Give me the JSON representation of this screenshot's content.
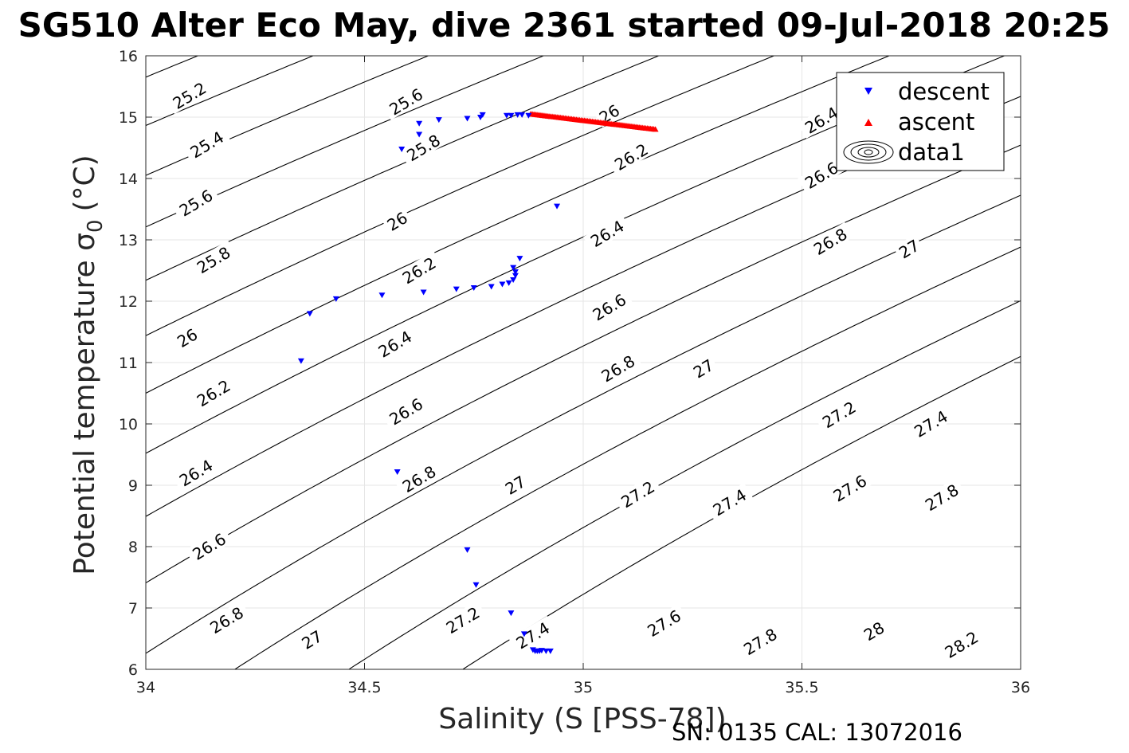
{
  "chart_data": {
    "type": "scatter",
    "title": "SG510 Alter Eco May, dive 2361 started 09-Jul-2018 20:25",
    "xlabel": "Salinity (S [PSS-78])",
    "ylabel": "Potential temperature σ₀ (°C)",
    "ylabel_main": "Potential temperature σ",
    "ylabel_sub": "0",
    "ylabel_unit": "(°C)",
    "xlim": [
      34,
      36
    ],
    "ylim": [
      6,
      16
    ],
    "xticks": [
      34,
      34.5,
      35,
      35.5,
      36
    ],
    "xtick_labels": [
      "34",
      "34.5",
      "35",
      "35.5",
      "36"
    ],
    "yticks": [
      6,
      7,
      8,
      9,
      10,
      11,
      12,
      13,
      14,
      15,
      16
    ],
    "ytick_labels": [
      "6",
      "7",
      "8",
      "9",
      "10",
      "11",
      "12",
      "13",
      "14",
      "15",
      "16"
    ],
    "grid": true,
    "legend_position": "top-right",
    "series": [
      {
        "name": "descent",
        "marker": "triangle-down",
        "color": "#0000ff",
        "points": [
          [
            34.355,
            11.03
          ],
          [
            34.375,
            11.8
          ],
          [
            34.435,
            12.04
          ],
          [
            34.54,
            12.1
          ],
          [
            34.575,
            9.22
          ],
          [
            34.585,
            14.48
          ],
          [
            34.625,
            14.9
          ],
          [
            34.625,
            14.72
          ],
          [
            34.635,
            12.15
          ],
          [
            34.67,
            14.96
          ],
          [
            34.71,
            12.2
          ],
          [
            34.735,
            14.98
          ],
          [
            34.75,
            12.22
          ],
          [
            34.765,
            15.0
          ],
          [
            34.77,
            15.04
          ],
          [
            34.79,
            12.24
          ],
          [
            34.815,
            12.28
          ],
          [
            34.825,
            15.03
          ],
          [
            34.83,
            12.3
          ],
          [
            34.835,
            15.03
          ],
          [
            34.84,
            12.35
          ],
          [
            34.84,
            12.55
          ],
          [
            34.845,
            12.42
          ],
          [
            34.845,
            12.48
          ],
          [
            34.85,
            15.04
          ],
          [
            34.855,
            12.7
          ],
          [
            34.86,
            15.04
          ],
          [
            34.875,
            15.03
          ],
          [
            34.94,
            13.55
          ],
          [
            34.735,
            7.95
          ],
          [
            34.755,
            7.38
          ],
          [
            34.835,
            6.92
          ],
          [
            34.865,
            6.58
          ],
          [
            34.885,
            6.32
          ],
          [
            34.89,
            6.3
          ],
          [
            34.895,
            6.3
          ],
          [
            34.9,
            6.3
          ],
          [
            34.905,
            6.31
          ],
          [
            34.915,
            6.3
          ],
          [
            34.925,
            6.3
          ]
        ]
      },
      {
        "name": "ascent",
        "marker": "triangle-up",
        "color": "#ff0000",
        "line": {
          "x_start": 34.88,
          "x_end": 35.165,
          "y_start": 15.05,
          "y_end": 14.8,
          "count": 80
        }
      },
      {
        "name": "data1",
        "marker": "contour",
        "color": "#000000"
      }
    ],
    "contour_levels": [
      25.2,
      25.4,
      25.6,
      25.8,
      26.0,
      26.2,
      26.4,
      26.6,
      26.8,
      27.0,
      27.2,
      27.4,
      27.6,
      27.8,
      28.0,
      28.2
    ],
    "contour_labels": [
      {
        "text": "25.2",
        "x": 34.1,
        "y": 15.35
      },
      {
        "text": "25.4",
        "x": 34.14,
        "y": 14.55
      },
      {
        "text": "25.6",
        "x": 34.115,
        "y": 13.6
      },
      {
        "text": "25.8",
        "x": 34.155,
        "y": 12.67
      },
      {
        "text": "26",
        "x": 34.095,
        "y": 11.4
      },
      {
        "text": "26.2",
        "x": 34.155,
        "y": 10.5
      },
      {
        "text": "26.4",
        "x": 34.115,
        "y": 9.2
      },
      {
        "text": "26.6",
        "x": 34.145,
        "y": 8.0
      },
      {
        "text": "26.8",
        "x": 34.185,
        "y": 6.8
      },
      {
        "text": "25.6",
        "x": 34.595,
        "y": 15.25
      },
      {
        "text": "25.8",
        "x": 34.635,
        "y": 14.5
      },
      {
        "text": "26",
        "x": 34.575,
        "y": 13.3
      },
      {
        "text": "26.2",
        "x": 34.625,
        "y": 12.5
      },
      {
        "text": "26.4",
        "x": 34.57,
        "y": 11.3
      },
      {
        "text": "26.6",
        "x": 34.595,
        "y": 10.2
      },
      {
        "text": "26.8",
        "x": 34.625,
        "y": 9.1
      },
      {
        "text": "27",
        "x": 34.38,
        "y": 6.48
      },
      {
        "text": "26",
        "x": 35.06,
        "y": 15.05
      },
      {
        "text": "26.2",
        "x": 35.11,
        "y": 14.35
      },
      {
        "text": "26.4",
        "x": 35.055,
        "y": 13.1
      },
      {
        "text": "26.6",
        "x": 35.06,
        "y": 11.9
      },
      {
        "text": "26.8",
        "x": 35.08,
        "y": 10.9
      },
      {
        "text": "27",
        "x": 34.845,
        "y": 9.0
      },
      {
        "text": "27.2",
        "x": 34.725,
        "y": 6.8
      },
      {
        "text": "27.4",
        "x": 34.885,
        "y": 6.55
      },
      {
        "text": "27",
        "x": 35.275,
        "y": 10.9
      },
      {
        "text": "27.2",
        "x": 35.125,
        "y": 8.85
      },
      {
        "text": "27.4",
        "x": 35.335,
        "y": 8.72
      },
      {
        "text": "27.6",
        "x": 35.185,
        "y": 6.75
      },
      {
        "text": "26.4",
        "x": 35.545,
        "y": 14.95
      },
      {
        "text": "26.6",
        "x": 35.545,
        "y": 14.05
      },
      {
        "text": "26.8",
        "x": 35.565,
        "y": 12.97
      },
      {
        "text": "27",
        "x": 35.745,
        "y": 12.85
      },
      {
        "text": "27.2",
        "x": 35.585,
        "y": 10.15
      },
      {
        "text": "27.4",
        "x": 35.795,
        "y": 10.0
      },
      {
        "text": "27.6",
        "x": 35.61,
        "y": 8.95
      },
      {
        "text": "27.8",
        "x": 35.82,
        "y": 8.8
      },
      {
        "text": "27.8",
        "x": 35.405,
        "y": 6.45
      },
      {
        "text": "28",
        "x": 35.665,
        "y": 6.62
      },
      {
        "text": "28.2",
        "x": 35.865,
        "y": 6.4
      }
    ]
  },
  "footer": {
    "sn_cal": "SN: 0135  CAL: 13072016"
  }
}
